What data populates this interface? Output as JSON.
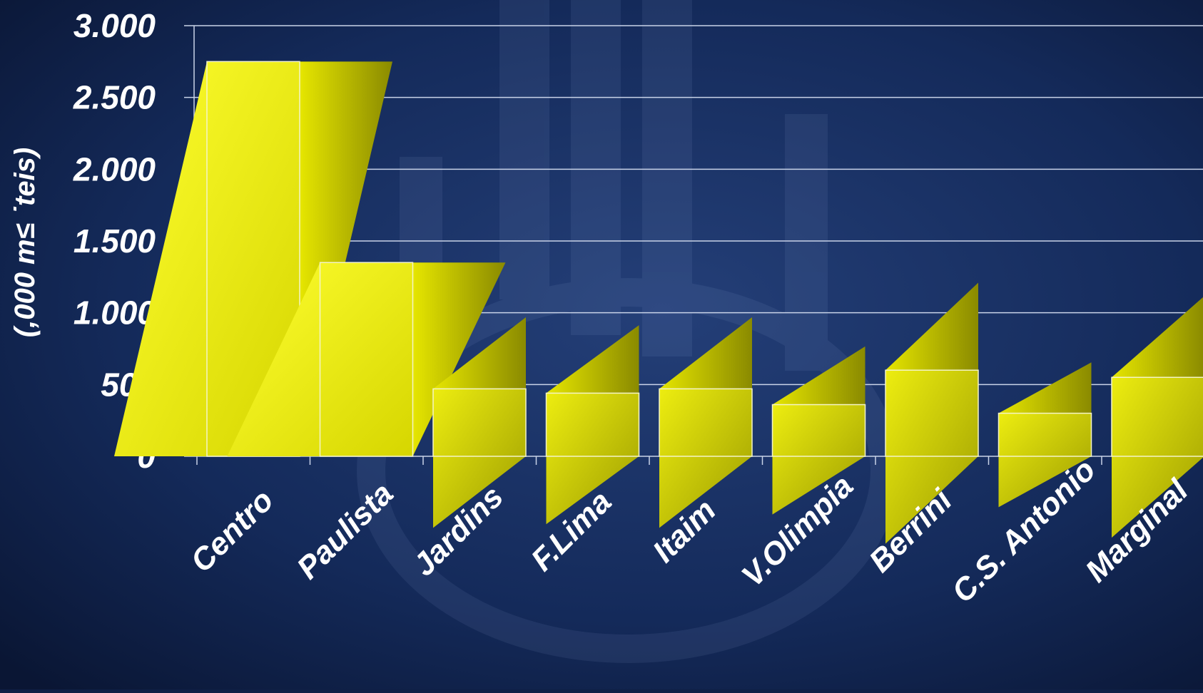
{
  "chart_data": {
    "type": "bar",
    "title": "",
    "xlabel": "",
    "ylabel": "(,000 m≤ ˙teis)",
    "categories": [
      "Centro",
      "Paulista",
      "Jardins",
      "F.Lima",
      "Itaim",
      "V.Olimpia",
      "Berrini",
      "C.S. Antonio",
      "Marginal"
    ],
    "values": [
      2750,
      1350,
      470,
      440,
      470,
      360,
      600,
      300,
      550
    ],
    "ylim": [
      0,
      3000
    ],
    "yticks": [
      0,
      500,
      1000,
      1500,
      2000,
      2500,
      3000
    ],
    "ytick_labels": [
      "0",
      "500",
      "1.000",
      "1.500",
      "2.000",
      "2.500",
      "3.000"
    ],
    "grid": true,
    "colors": {
      "bar_face": "#f2f200",
      "bar_side": "#a6a600",
      "grid": "#d0d8e8",
      "text": "#ffffff",
      "background_top": "#1b3366",
      "background_bottom": "#0b1838"
    }
  }
}
